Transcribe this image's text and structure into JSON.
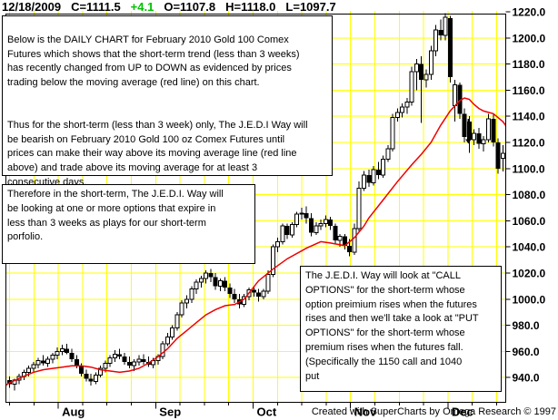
{
  "header": {
    "date": "12/18/2009",
    "close": "C=1111.5",
    "change": "+4.1",
    "open": "O=1107.8",
    "high": "H=1118.0",
    "low": "L=1097.7",
    "change_color": "#00c000"
  },
  "annotations": {
    "box1_p1": "Below is the DAILY CHART for February 2010 Gold 100 Comex\nFutures which shows that the short-term trend (less than 3 weeks)\nhas recently changed from UP to DOWN as evidenced by prices\ntrading below the moving average (red line) on this chart.",
    "box1_p2": "Thus for the short-term (less than 3 week) only, The J.E.D.I Way will\nbe bearish on February 2010 Gold 100 oz Comex Futures until\nprices can make their way above its moving average line (red line\nabove) and trade above its moving average for at least 3\nconsecutive days.",
    "box2": "Therefore in the short-term, The J.E.D.I. Way will\nbe looking at one or more options that expire in\nless than 3 weeks as plays for our short-term\nporfolio.",
    "box3": "The J.E.D.I. Way will look at \"CALL\nOPTIONS\" for the short-term whose\noption preimium rises when the futures\nrises and then we'll take a look at \"PUT\nOPTIONS\" for the short-term whose\npremium rises when the futures fall.\n(Specifically the 1150 call and 1040\nput"
  },
  "credit": "Created with SuperCharts by Omega Research © 1997",
  "chart_data": {
    "type": "candlestick",
    "instrument": "February 2010 Gold 100 oz Comex Futures",
    "interval": "Daily",
    "grid": true,
    "grid_color": "#ffff00",
    "ma_color": "#ee0000",
    "candle_color": "#000000",
    "x_axis": {
      "tick_labels": [
        "Aug",
        "Sep",
        "Oct",
        "Nov",
        "Dec"
      ],
      "month_week_positions": [
        2,
        6,
        10,
        14,
        18
      ],
      "weeks_total": 21
    },
    "y_axis": {
      "side": "right",
      "tick_values": [
        1220,
        1200,
        1180,
        1160,
        1140,
        1120,
        1100,
        1080,
        1060,
        1040,
        1020,
        1000,
        980,
        960,
        940
      ],
      "decimals": 1,
      "min": 920,
      "max": 1222
    },
    "series": [
      {
        "name": "daily_ohlc",
        "type": "candlestick",
        "data": [
          [
            938,
            941,
            932,
            935
          ],
          [
            935,
            939,
            930,
            938
          ],
          [
            938,
            943,
            935,
            941
          ],
          [
            941,
            946,
            938,
            944
          ],
          [
            944,
            949,
            941,
            947
          ],
          [
            947,
            952,
            944,
            950
          ],
          [
            950,
            955,
            947,
            953
          ],
          [
            953,
            957,
            949,
            951
          ],
          [
            951,
            956,
            948,
            954
          ],
          [
            954,
            959,
            951,
            957
          ],
          [
            957,
            963,
            954,
            960
          ],
          [
            960,
            965,
            957,
            962
          ],
          [
            962,
            966,
            958,
            959
          ],
          [
            959,
            962,
            952,
            954
          ],
          [
            954,
            957,
            947,
            949
          ],
          [
            949,
            951,
            941,
            943
          ],
          [
            943,
            946,
            937,
            939
          ],
          [
            939,
            943,
            934,
            937
          ],
          [
            937,
            944,
            935,
            942
          ],
          [
            942,
            949,
            940,
            947
          ],
          [
            947,
            953,
            944,
            951
          ],
          [
            951,
            957,
            948,
            955
          ],
          [
            955,
            961,
            952,
            958
          ],
          [
            958,
            962,
            954,
            956
          ],
          [
            956,
            959,
            950,
            952
          ],
          [
            952,
            956,
            947,
            949
          ],
          [
            949,
            954,
            945,
            952
          ],
          [
            952,
            957,
            949,
            954
          ],
          [
            954,
            958,
            950,
            952
          ],
          [
            952,
            956,
            948,
            950
          ],
          [
            950,
            955,
            947,
            953
          ],
          [
            953,
            958,
            950,
            956
          ],
          [
            956,
            968,
            954,
            966
          ],
          [
            966,
            974,
            964,
            971
          ],
          [
            971,
            980,
            969,
            978
          ],
          [
            978,
            990,
            976,
            988
          ],
          [
            988,
            999,
            986,
            997
          ],
          [
            997,
            1003,
            993,
            1000
          ],
          [
            1000,
            1010,
            997,
            1008
          ],
          [
            1008,
            1015,
            1004,
            1013
          ],
          [
            1013,
            1018,
            1009,
            1016
          ],
          [
            1016,
            1022,
            1012,
            1020
          ],
          [
            1020,
            1023,
            1013,
            1017
          ],
          [
            1017,
            1020,
            1007,
            1010
          ],
          [
            1010,
            1016,
            1006,
            1014
          ],
          [
            1014,
            1017,
            1006,
            1009
          ],
          [
            1009,
            1012,
            1001,
            1004
          ],
          [
            1004,
            1008,
            997,
            1000
          ],
          [
            1000,
            1004,
            993,
            996
          ],
          [
            996,
            1004,
            994,
            1002
          ],
          [
            1002,
            1009,
            999,
            1007
          ],
          [
            1007,
            1010,
            1002,
            1005
          ],
          [
            1005,
            1008,
            998,
            1002
          ],
          [
            1002,
            1008,
            1000,
            1006
          ],
          [
            1006,
            1022,
            1004,
            1019
          ],
          [
            1019,
            1042,
            1017,
            1040
          ],
          [
            1040,
            1047,
            1036,
            1044
          ],
          [
            1044,
            1058,
            1042,
            1056
          ],
          [
            1056,
            1058,
            1046,
            1049
          ],
          [
            1049,
            1059,
            1047,
            1057
          ],
          [
            1057,
            1067,
            1055,
            1065
          ],
          [
            1065,
            1070,
            1061,
            1066
          ],
          [
            1066,
            1071,
            1058,
            1062
          ],
          [
            1062,
            1066,
            1048,
            1051
          ],
          [
            1051,
            1059,
            1049,
            1056
          ],
          [
            1056,
            1061,
            1053,
            1058
          ],
          [
            1058,
            1064,
            1055,
            1061
          ],
          [
            1061,
            1063,
            1053,
            1056
          ],
          [
            1056,
            1058,
            1042,
            1045
          ],
          [
            1045,
            1050,
            1040,
            1048
          ],
          [
            1048,
            1050,
            1038,
            1041
          ],
          [
            1041,
            1046,
            1033,
            1036
          ],
          [
            1036,
            1058,
            1034,
            1054
          ],
          [
            1054,
            1090,
            1052,
            1085
          ],
          [
            1085,
            1098,
            1083,
            1095
          ],
          [
            1095,
            1099,
            1086,
            1089
          ],
          [
            1089,
            1102,
            1087,
            1099
          ],
          [
            1099,
            1105,
            1092,
            1095
          ],
          [
            1095,
            1110,
            1093,
            1107
          ],
          [
            1107,
            1118,
            1105,
            1115
          ],
          [
            1115,
            1142,
            1113,
            1139
          ],
          [
            1139,
            1146,
            1136,
            1143
          ],
          [
            1143,
            1150,
            1139,
            1147
          ],
          [
            1147,
            1154,
            1142,
            1151
          ],
          [
            1151,
            1178,
            1148,
            1174
          ],
          [
            1174,
            1184,
            1160,
            1180
          ],
          [
            1180,
            1186,
            1135,
            1168
          ],
          [
            1168,
            1176,
            1162,
            1172
          ],
          [
            1172,
            1194,
            1168,
            1190
          ],
          [
            1190,
            1210,
            1186,
            1206
          ],
          [
            1206,
            1214,
            1198,
            1202
          ],
          [
            1202,
            1219,
            1198,
            1216
          ],
          [
            1215,
            1217,
            1166,
            1170
          ],
          [
            1148,
            1168,
            1136,
            1164
          ],
          [
            1164,
            1166,
            1138,
            1142
          ],
          [
            1142,
            1146,
            1120,
            1124
          ],
          [
            1136,
            1140,
            1112,
            1122
          ],
          [
            1122,
            1130,
            1118,
            1127
          ],
          [
            1127,
            1131,
            1115,
            1119
          ],
          [
            1119,
            1125,
            1113,
            1122
          ],
          [
            1122,
            1142,
            1120,
            1138
          ],
          [
            1138,
            1142,
            1117,
            1120
          ],
          [
            1120,
            1123,
            1096,
            1100
          ],
          [
            1107.8,
            1118,
            1097.7,
            1111.5
          ]
        ]
      },
      {
        "name": "moving_average",
        "type": "line",
        "points": [
          [
            -0.8,
            934
          ],
          [
            0,
            936
          ],
          [
            3,
            941
          ],
          [
            5,
            944
          ],
          [
            7,
            946
          ],
          [
            9,
            947
          ],
          [
            11,
            948
          ],
          [
            13,
            949
          ],
          [
            15,
            949
          ],
          [
            17,
            948
          ],
          [
            19,
            946
          ],
          [
            21,
            945
          ],
          [
            23,
            944
          ],
          [
            25,
            945
          ],
          [
            27,
            947
          ],
          [
            29,
            951
          ],
          [
            31,
            956
          ],
          [
            33,
            962
          ],
          [
            35,
            970
          ],
          [
            37,
            976
          ],
          [
            39,
            982
          ],
          [
            41,
            988
          ],
          [
            43,
            992
          ],
          [
            45,
            995
          ],
          [
            47,
            996
          ],
          [
            49,
            1000
          ],
          [
            52,
            1014
          ],
          [
            55,
            1023
          ],
          [
            58,
            1031
          ],
          [
            62,
            1039
          ],
          [
            65,
            1044
          ],
          [
            67,
            1043
          ],
          [
            70,
            1041
          ],
          [
            72,
            1047
          ],
          [
            74,
            1056
          ],
          [
            75,
            1062
          ],
          [
            78,
            1076
          ],
          [
            81,
            1090
          ],
          [
            84,
            1103
          ],
          [
            86,
            1111
          ],
          [
            88,
            1120
          ],
          [
            90,
            1133
          ],
          [
            92,
            1144
          ],
          [
            94,
            1152
          ],
          [
            95,
            1154
          ],
          [
            96,
            1153
          ],
          [
            97,
            1149
          ],
          [
            98,
            1146
          ],
          [
            99,
            1144
          ],
          [
            100,
            1143
          ],
          [
            101,
            1142
          ],
          [
            102,
            1139
          ],
          [
            103,
            1136
          ],
          [
            103.6,
            1133
          ]
        ]
      }
    ],
    "down_arrow_annotation": {
      "day_index": 95.8,
      "from_price": 1138,
      "to_price": 1119
    }
  }
}
